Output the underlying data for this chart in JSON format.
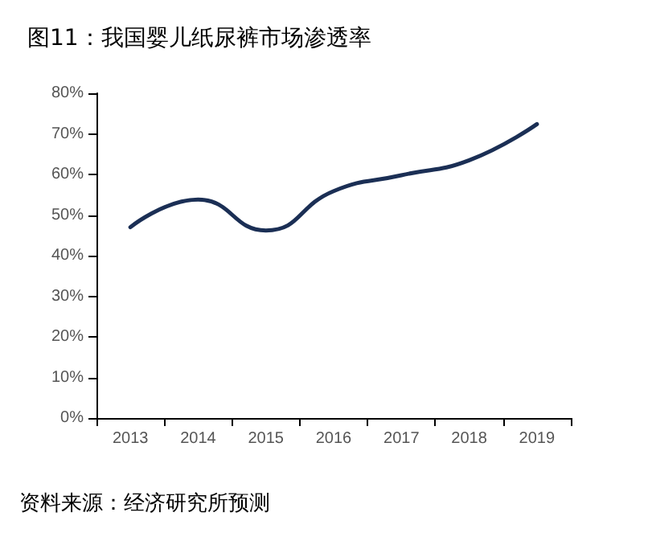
{
  "chart_data": {
    "type": "line",
    "title": "图11：我国婴儿纸尿裤市场渗透率",
    "annotations": [
      "资料来源：经济研究所预测"
    ],
    "categories": [
      "2013",
      "2014",
      "2015",
      "2016",
      "2017",
      "2018",
      "2019"
    ],
    "series": [
      {
        "color": "#1b2f55",
        "values": [
          47,
          53.8,
          46.2,
          55.9,
          59.8,
          63.5,
          72.4
        ]
      }
    ],
    "ylim": [
      0,
      80
    ],
    "yticks": [
      {
        "value": 0,
        "label": "0%"
      },
      {
        "value": 10,
        "label": "10%"
      },
      {
        "value": 20,
        "label": "20%"
      },
      {
        "value": 30,
        "label": "30%"
      },
      {
        "value": 40,
        "label": "40%"
      },
      {
        "value": 50,
        "label": "50%"
      },
      {
        "value": 60,
        "label": "60%"
      },
      {
        "value": 70,
        "label": "70%"
      },
      {
        "value": 80,
        "label": "80%"
      }
    ],
    "grid": false,
    "marker": "none",
    "line_style": "solid"
  }
}
